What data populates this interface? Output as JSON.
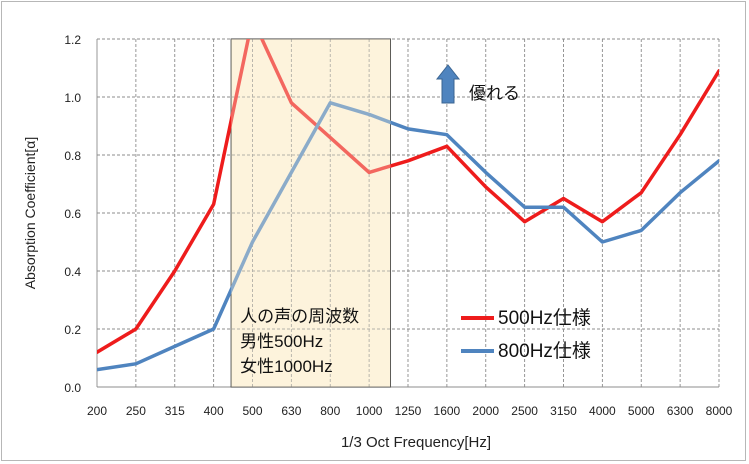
{
  "chart_data": {
    "type": "line",
    "title": "",
    "xlabel": "1/3 Oct Frequency[Hz]",
    "ylabel": "Absorption Coefficient[α]",
    "x": [
      "200",
      "250",
      "315",
      "400",
      "500",
      "630",
      "800",
      "1000",
      "1250",
      "1600",
      "2000",
      "2500",
      "3150",
      "4000",
      "5000",
      "6300",
      "8000"
    ],
    "ylim": [
      0,
      1.2
    ],
    "yticks": [
      "0.0",
      "0.2",
      "0.4",
      "0.6",
      "0.8",
      "1.0",
      "1.2"
    ],
    "grid": true,
    "legend_position": "bottom-right",
    "series": [
      {
        "name": "500Hz仕様",
        "color": "#ee1c1c",
        "values": [
          0.12,
          0.2,
          0.4,
          0.63,
          1.27,
          0.98,
          0.86,
          0.74,
          0.78,
          0.83,
          0.69,
          0.57,
          0.65,
          0.57,
          0.67,
          0.87,
          1.09
        ]
      },
      {
        "name": "800Hz仕様",
        "color": "#4f84bf",
        "values": [
          0.06,
          0.08,
          0.14,
          0.2,
          0.5,
          0.74,
          0.98,
          0.94,
          0.89,
          0.87,
          0.74,
          0.62,
          0.62,
          0.5,
          0.54,
          0.67,
          0.78
        ]
      }
    ],
    "annotation": {
      "highlight_from": "500",
      "highlight_to": "1000",
      "highlight_color": "#fdf3dc",
      "lines": [
        "人の声の周波数",
        "男性500Hz",
        "女性1000Hz"
      ],
      "arrow_label": "優れる",
      "arrow_color": "#4f84bf"
    }
  }
}
